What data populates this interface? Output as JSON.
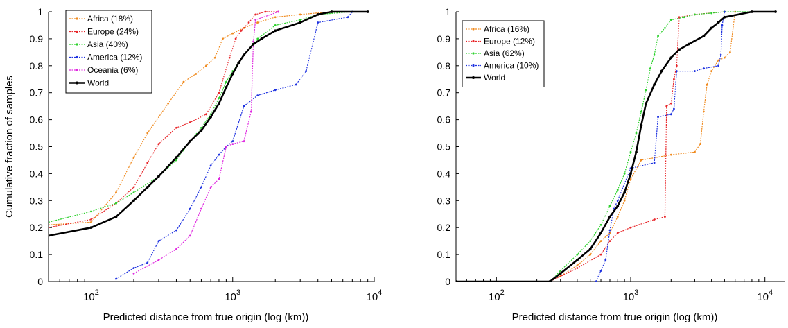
{
  "chart_data": [
    {
      "type": "line",
      "xlabel": "Predicted distance from true origin (log (km))",
      "ylabel": "Cumulative fraction of samples",
      "xscale": "log",
      "xlim": [
        50,
        10000
      ],
      "ylim": [
        0,
        1
      ],
      "xticks": [
        100,
        1000,
        10000
      ],
      "xtick_labels": [
        {
          "base": "10",
          "exp": "2"
        },
        {
          "base": "10",
          "exp": "3"
        },
        {
          "base": "10",
          "exp": "4"
        }
      ],
      "yticks": [
        0,
        0.1,
        0.2,
        0.3,
        0.4,
        0.5,
        0.6,
        0.7,
        0.8,
        0.9,
        1
      ],
      "ytick_labels": [
        "0",
        "0.1",
        "0.2",
        "0.3",
        "0.4",
        "0.5",
        "0.6",
        "0.7",
        "0.8",
        "0.9",
        "1"
      ],
      "legend_position": "top-left",
      "series": [
        {
          "name": "Africa (18%)",
          "color": "#f08a1e",
          "style": "dotted",
          "x": [
            50,
            100,
            150,
            200,
            250,
            350,
            450,
            550,
            650,
            750,
            850,
            1000,
            1200,
            1500,
            2000,
            3000,
            5000,
            9000
          ],
          "y": [
            0.21,
            0.22,
            0.33,
            0.46,
            0.55,
            0.66,
            0.74,
            0.77,
            0.8,
            0.83,
            0.9,
            0.92,
            0.94,
            0.96,
            0.98,
            0.99,
            1,
            1
          ]
        },
        {
          "name": "Europe (24%)",
          "color": "#e8262a",
          "style": "dotted",
          "x": [
            50,
            100,
            150,
            200,
            250,
            300,
            400,
            500,
            650,
            800,
            950,
            1050,
            1150,
            1300,
            1450,
            1700,
            2100
          ],
          "y": [
            0.2,
            0.23,
            0.29,
            0.35,
            0.44,
            0.51,
            0.57,
            0.59,
            0.62,
            0.7,
            0.83,
            0.9,
            0.93,
            0.96,
            0.99,
            1,
            1
          ]
        },
        {
          "name": "Asia (40%)",
          "color": "#2bd12b",
          "style": "dotted",
          "x": [
            50,
            100,
            150,
            200,
            300,
            400,
            500,
            600,
            700,
            800,
            900,
            1000,
            1200,
            1500,
            2000,
            3000,
            4000,
            7000,
            9000
          ],
          "y": [
            0.22,
            0.26,
            0.29,
            0.33,
            0.39,
            0.45,
            0.52,
            0.57,
            0.62,
            0.68,
            0.74,
            0.78,
            0.84,
            0.9,
            0.95,
            0.97,
            0.99,
            1,
            1
          ]
        },
        {
          "name": "America (12%)",
          "color": "#1e32e0",
          "style": "dotted",
          "x": [
            150,
            200,
            250,
            300,
            400,
            500,
            600,
            700,
            800,
            900,
            1000,
            1200,
            1500,
            2000,
            2800,
            3300,
            4000,
            6500,
            7000
          ],
          "y": [
            0.01,
            0.05,
            0.07,
            0.15,
            0.19,
            0.27,
            0.35,
            0.43,
            0.47,
            0.5,
            0.52,
            0.65,
            0.69,
            0.71,
            0.73,
            0.78,
            0.96,
            0.98,
            1
          ]
        },
        {
          "name": "Oceania (6%)",
          "color": "#e02ae0",
          "style": "dotted",
          "x": [
            200,
            300,
            400,
            500,
            600,
            700,
            800,
            900,
            1000,
            1200,
            1350,
            1400,
            1450,
            2100
          ],
          "y": [
            0.03,
            0.08,
            0.12,
            0.17,
            0.27,
            0.35,
            0.38,
            0.5,
            0.51,
            0.52,
            0.63,
            0.89,
            0.97,
            1
          ]
        },
        {
          "name": "World",
          "color": "#000000",
          "style": "solid",
          "x": [
            50,
            100,
            150,
            200,
            250,
            300,
            400,
            500,
            600,
            700,
            800,
            900,
            1000,
            1100,
            1200,
            1400,
            1600,
            2000,
            3000,
            4000,
            5000,
            9000
          ],
          "y": [
            0.17,
            0.2,
            0.24,
            0.3,
            0.35,
            0.39,
            0.46,
            0.52,
            0.56,
            0.61,
            0.66,
            0.72,
            0.77,
            0.81,
            0.84,
            0.88,
            0.9,
            0.93,
            0.96,
            0.99,
            1,
            1
          ]
        }
      ]
    },
    {
      "type": "line",
      "xlabel": "Predicted distance from true origin (log (km))",
      "ylabel": "",
      "xscale": "log",
      "xlim": [
        50,
        14000
      ],
      "ylim": [
        0,
        1
      ],
      "xticks": [
        100,
        1000,
        10000
      ],
      "xtick_labels": [
        {
          "base": "10",
          "exp": "2"
        },
        {
          "base": "10",
          "exp": "3"
        },
        {
          "base": "10",
          "exp": "4"
        }
      ],
      "yticks": [
        0,
        0.1,
        0.2,
        0.3,
        0.4,
        0.5,
        0.6,
        0.7,
        0.8,
        0.9,
        1
      ],
      "ytick_labels": [
        "0",
        "0.1",
        "0.2",
        "0.3",
        "0.4",
        "0.5",
        "0.6",
        "0.7",
        "0.8",
        "0.9",
        "1"
      ],
      "legend_position": "top-left",
      "series": [
        {
          "name": "Africa (16%)",
          "color": "#f08a1e",
          "style": "dotted",
          "x": [
            50,
            250,
            300,
            400,
            500,
            600,
            700,
            800,
            900,
            1000,
            1200,
            2000,
            3000,
            3300,
            3500,
            3700,
            4000,
            4500,
            5000,
            5500,
            6000
          ],
          "y": [
            0,
            0,
            0.02,
            0.06,
            0.1,
            0.15,
            0.18,
            0.24,
            0.3,
            0.38,
            0.45,
            0.47,
            0.48,
            0.51,
            0.63,
            0.73,
            0.78,
            0.82,
            0.83,
            0.85,
            1
          ]
        },
        {
          "name": "Europe (12%)",
          "color": "#e8262a",
          "style": "dotted",
          "x": [
            50,
            250,
            400,
            600,
            700,
            800,
            1000,
            1500,
            1800,
            1850,
            2000,
            2100,
            2200,
            2300,
            3000,
            5000
          ],
          "y": [
            0,
            0,
            0.05,
            0.1,
            0.15,
            0.18,
            0.2,
            0.23,
            0.24,
            0.65,
            0.66,
            0.75,
            0.8,
            0.98,
            0.99,
            1
          ]
        },
        {
          "name": "Asia (62%)",
          "color": "#2bd12b",
          "style": "dotted",
          "x": [
            50,
            250,
            300,
            400,
            500,
            600,
            700,
            800,
            900,
            1000,
            1100,
            1200,
            1300,
            1400,
            1500,
            1600,
            1800,
            2000,
            2500,
            3000,
            4000,
            5000,
            8000,
            12000
          ],
          "y": [
            0,
            0,
            0.04,
            0.1,
            0.15,
            0.21,
            0.28,
            0.34,
            0.4,
            0.48,
            0.55,
            0.63,
            0.71,
            0.79,
            0.84,
            0.91,
            0.94,
            0.97,
            0.98,
            0.99,
            0.995,
            1,
            1,
            1
          ]
        },
        {
          "name": "America (10%)",
          "color": "#1e32e0",
          "style": "dotted",
          "x": [
            550,
            600,
            650,
            700,
            750,
            800,
            1000,
            1500,
            1600,
            2000,
            2100,
            2200,
            3000,
            3500,
            4500,
            4700,
            4800,
            5000
          ],
          "y": [
            0,
            0.04,
            0.08,
            0.19,
            0.27,
            0.3,
            0.42,
            0.44,
            0.61,
            0.62,
            0.64,
            0.78,
            0.78,
            0.79,
            0.8,
            0.84,
            0.95,
            1
          ]
        },
        {
          "name": "World",
          "color": "#000000",
          "style": "solid",
          "x": [
            50,
            250,
            300,
            400,
            500,
            600,
            700,
            800,
            900,
            1000,
            1100,
            1200,
            1300,
            1500,
            1700,
            2000,
            2300,
            2700,
            3500,
            4000,
            4500,
            5000,
            8000,
            12000
          ],
          "y": [
            0,
            0,
            0.03,
            0.08,
            0.12,
            0.18,
            0.24,
            0.28,
            0.33,
            0.4,
            0.48,
            0.58,
            0.66,
            0.73,
            0.78,
            0.83,
            0.86,
            0.88,
            0.91,
            0.94,
            0.96,
            0.98,
            1,
            1
          ]
        }
      ]
    }
  ]
}
